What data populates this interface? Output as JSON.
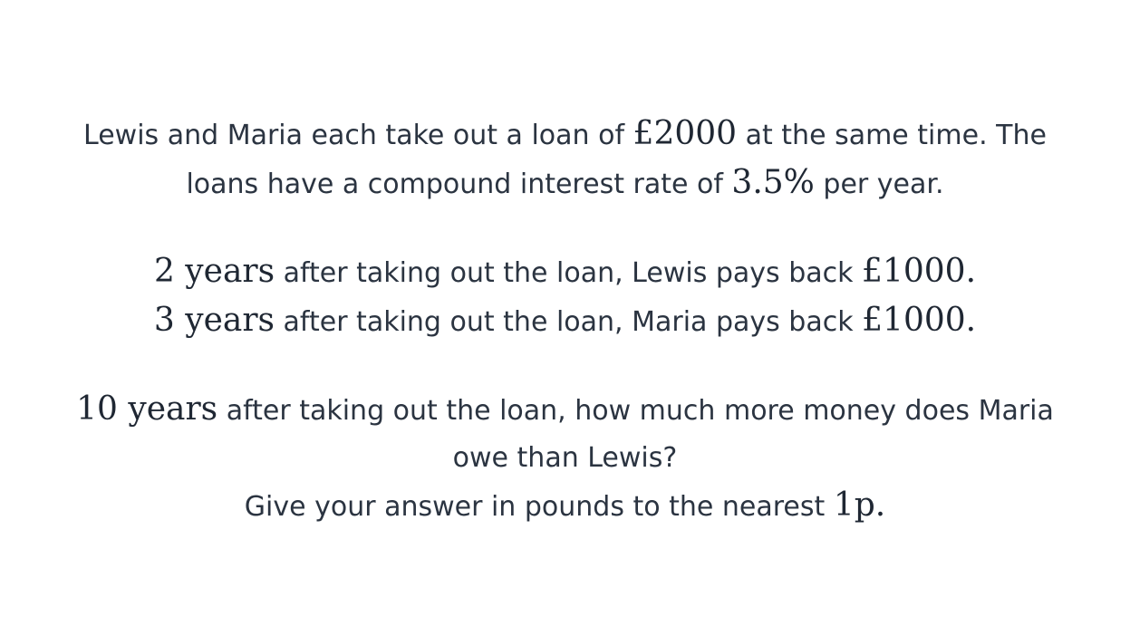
{
  "paragraph1": {
    "line1": {
      "before": "Lewis and Maria each take out a loan of ",
      "amount": "£2000",
      "after": " at the same time. The"
    },
    "line2": {
      "before": "loans have a compound interest rate of ",
      "rate": "3.5%",
      "after": " per year."
    }
  },
  "paragraph2": {
    "lewis": {
      "years": "2",
      "unit": " years",
      "text": " after taking out the loan, Lewis pays back ",
      "amount": "£1000",
      "end": "."
    },
    "maria": {
      "years": "3",
      "unit": " years",
      "text": " after taking out the loan, Maria pays back ",
      "amount": "£1000",
      "end": "."
    }
  },
  "paragraph3": {
    "line1": {
      "years": "10",
      "unit": " years",
      "text": " after taking out the loan, how much more money does Maria"
    },
    "line2": {
      "text": "owe than Lewis?"
    },
    "line3": {
      "text": "Give your answer in pounds to the nearest ",
      "precision": "1p",
      "end": "."
    }
  }
}
